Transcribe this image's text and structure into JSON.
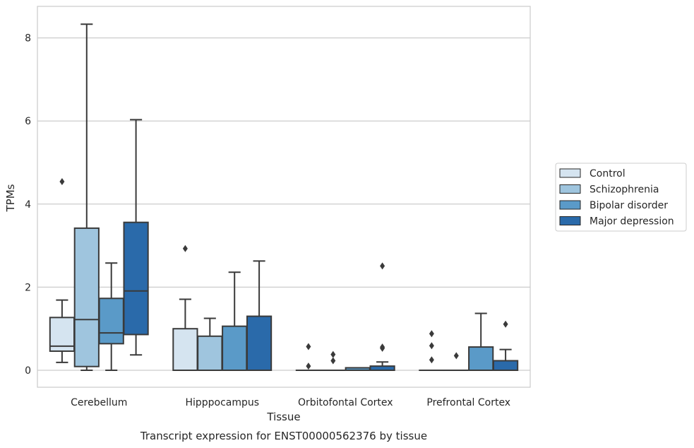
{
  "chart_data": {
    "type": "boxplot",
    "title": "",
    "caption": "Transcript expression for ENST00000562376 by tissue",
    "xlabel": "Tissue",
    "ylabel": "TPMs",
    "ylim": [
      -0.4,
      8.75
    ],
    "yticks": [
      0,
      2,
      4,
      6,
      8
    ],
    "grid": "horizontal",
    "legend_position": "right",
    "categories": [
      "Cerebellum",
      "Hipppocampus",
      "Orbitofontal Cortex",
      "Prefrontal Cortex"
    ],
    "series": [
      {
        "name": "Control",
        "color": "#d5e4f0",
        "boxes": [
          {
            "q1": 0.46,
            "median": 0.58,
            "q3": 1.27,
            "whisker_low": 0.19,
            "whisker_high": 1.69,
            "outliers": [
              4.54
            ]
          },
          {
            "q1": 0.0,
            "median": 0.0,
            "q3": 1.0,
            "whisker_low": 0.0,
            "whisker_high": 1.71,
            "outliers": [
              2.93
            ]
          },
          {
            "q1": 0.0,
            "median": 0.0,
            "q3": 0.0,
            "whisker_low": 0.0,
            "whisker_high": 0.0,
            "outliers": [
              0.1,
              0.57
            ]
          },
          {
            "q1": 0.0,
            "median": 0.0,
            "q3": 0.0,
            "whisker_low": 0.0,
            "whisker_high": 0.0,
            "outliers": [
              0.25,
              0.59,
              0.88
            ]
          }
        ]
      },
      {
        "name": "Schizophrenia",
        "color": "#9fc5de",
        "boxes": [
          {
            "q1": 0.09,
            "median": 1.22,
            "q3": 3.42,
            "whisker_low": 0.0,
            "whisker_high": 8.33,
            "outliers": []
          },
          {
            "q1": 0.0,
            "median": 0.0,
            "q3": 0.82,
            "whisker_low": 0.0,
            "whisker_high": 1.25,
            "outliers": []
          },
          {
            "q1": 0.0,
            "median": 0.0,
            "q3": 0.0,
            "whisker_low": 0.0,
            "whisker_high": 0.0,
            "outliers": [
              0.23,
              0.38
            ]
          },
          {
            "q1": 0.0,
            "median": 0.0,
            "q3": 0.0,
            "whisker_low": 0.0,
            "whisker_high": 0.0,
            "outliers": [
              0.35
            ]
          }
        ]
      },
      {
        "name": "Bipolar disorder",
        "color": "#5a9ac8",
        "boxes": [
          {
            "q1": 0.64,
            "median": 0.9,
            "q3": 1.73,
            "whisker_low": 0.0,
            "whisker_high": 2.58,
            "outliers": []
          },
          {
            "q1": 0.0,
            "median": 0.0,
            "q3": 1.06,
            "whisker_low": 0.0,
            "whisker_high": 2.36,
            "outliers": []
          },
          {
            "q1": 0.0,
            "median": 0.0,
            "q3": 0.06,
            "whisker_low": 0.0,
            "whisker_high": 0.06,
            "outliers": []
          },
          {
            "q1": 0.0,
            "median": 0.0,
            "q3": 0.56,
            "whisker_low": 0.0,
            "whisker_high": 1.37,
            "outliers": []
          }
        ]
      },
      {
        "name": "Major depression",
        "color": "#2a6aaa",
        "boxes": [
          {
            "q1": 0.86,
            "median": 1.91,
            "q3": 3.56,
            "whisker_low": 0.37,
            "whisker_high": 6.03,
            "outliers": []
          },
          {
            "q1": 0.0,
            "median": 0.0,
            "q3": 1.3,
            "whisker_low": 0.0,
            "whisker_high": 2.63,
            "outliers": []
          },
          {
            "q1": 0.0,
            "median": 0.0,
            "q3": 0.1,
            "whisker_low": 0.0,
            "whisker_high": 0.2,
            "outliers": [
              0.53,
              0.56,
              2.51
            ]
          },
          {
            "q1": 0.0,
            "median": 0.0,
            "q3": 0.23,
            "whisker_low": 0.0,
            "whisker_high": 0.5,
            "outliers": [
              1.11
            ]
          }
        ]
      }
    ]
  }
}
